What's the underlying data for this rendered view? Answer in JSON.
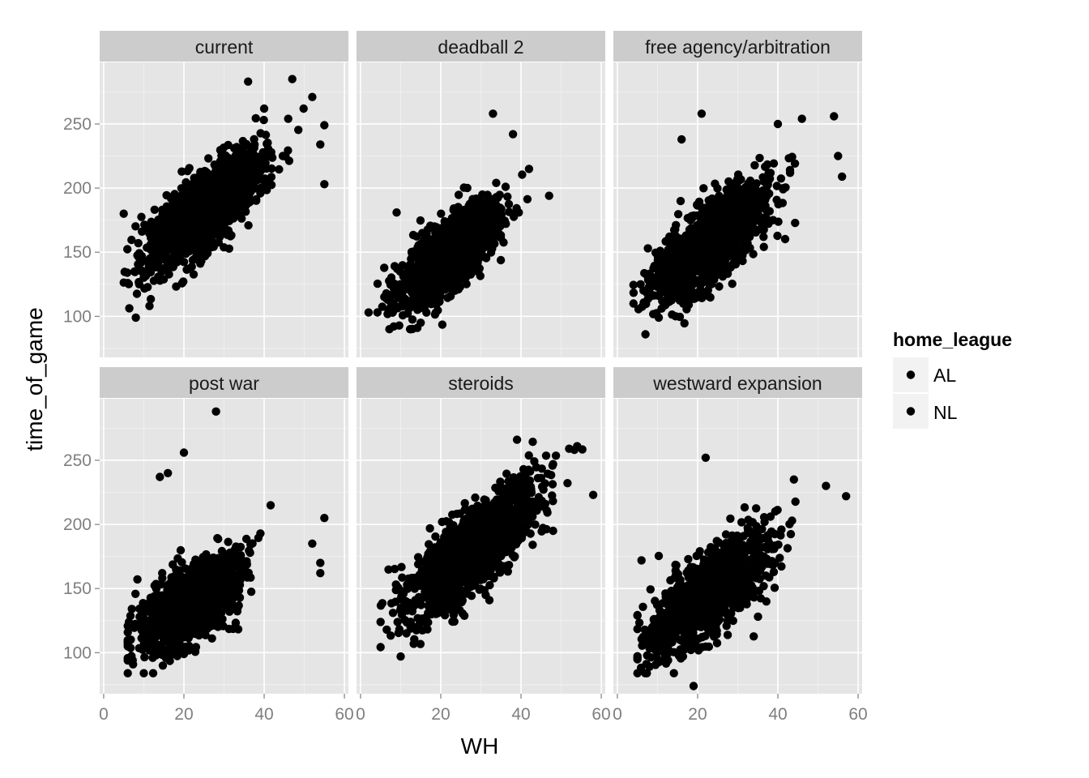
{
  "chart_data": {
    "type": "scatter",
    "xlabel": "WH",
    "ylabel": "time_of_game",
    "xlim": [
      -1,
      61
    ],
    "ylim": [
      68,
      298
    ],
    "x_ticks": [
      0,
      20,
      40,
      60
    ],
    "x_tick_labels": [
      "0",
      "20",
      "40",
      "60"
    ],
    "y_ticks": [
      100,
      150,
      200,
      250
    ],
    "y_tick_labels": [
      "100",
      "150",
      "200",
      "250"
    ],
    "grid": true,
    "point_color": "#000000",
    "legend": {
      "title": "home_league",
      "position": "right",
      "entries": [
        "AL",
        "NL"
      ]
    },
    "facets": [
      {
        "label": "current",
        "cloud": {
          "x_mean": 25,
          "x_sd": 7,
          "x_min": 5,
          "x_max": 55,
          "slope": 2.5,
          "intercept": 120,
          "noise": 15,
          "y_min": 98,
          "y_max": 262
        },
        "outliers": [
          [
            36,
            283
          ],
          [
            47,
            285
          ],
          [
            52,
            271
          ],
          [
            55,
            249
          ],
          [
            55,
            203
          ],
          [
            54,
            234
          ],
          [
            46,
            254
          ],
          [
            40,
            262
          ],
          [
            6,
            126
          ],
          [
            8,
            99
          ]
        ]
      },
      {
        "label": "deadball 2",
        "cloud": {
          "x_mean": 22,
          "x_sd": 6,
          "x_min": 4,
          "x_max": 46,
          "slope": 2.4,
          "intercept": 95,
          "noise": 14,
          "y_min": 90,
          "y_max": 232
        },
        "outliers": [
          [
            33,
            258
          ],
          [
            38,
            242
          ],
          [
            42,
            215
          ],
          [
            47,
            194
          ],
          [
            9,
            181
          ],
          [
            2,
            103
          ],
          [
            15,
            95
          ]
        ]
      },
      {
        "label": "free agency/arbitration",
        "cloud": {
          "x_mean": 23,
          "x_sd": 7,
          "x_min": 4,
          "x_max": 52,
          "slope": 2.4,
          "intercept": 102,
          "noise": 15,
          "y_min": 86,
          "y_max": 225
        },
        "outliers": [
          [
            21,
            258
          ],
          [
            16,
            238
          ],
          [
            54,
            256
          ],
          [
            46,
            254
          ],
          [
            40,
            250
          ],
          [
            55,
            225
          ],
          [
            56,
            209
          ],
          [
            7,
            86
          ],
          [
            4,
            110
          ]
        ]
      },
      {
        "label": "post war",
        "cloud": {
          "x_mean": 22,
          "x_sd": 6,
          "x_min": 6,
          "x_max": 48,
          "slope": 1.8,
          "intercept": 100,
          "noise": 14,
          "y_min": 84,
          "y_max": 215
        },
        "outliers": [
          [
            28,
            288
          ],
          [
            20,
            256
          ],
          [
            16,
            240
          ],
          [
            14,
            237
          ],
          [
            55,
            205
          ],
          [
            54,
            170
          ],
          [
            54,
            162
          ],
          [
            52,
            185
          ],
          [
            6,
            94
          ],
          [
            10,
            84
          ]
        ]
      },
      {
        "label": "steroids",
        "cloud": {
          "x_mean": 28,
          "x_sd": 8,
          "x_min": 5,
          "x_max": 56,
          "slope": 2.5,
          "intercept": 110,
          "noise": 16,
          "y_min": 96,
          "y_max": 266
        },
        "outliers": [
          [
            58,
            223
          ],
          [
            54,
            261
          ],
          [
            52,
            259
          ],
          [
            39,
            266
          ],
          [
            48,
            247
          ],
          [
            10,
            97
          ],
          [
            5,
            124
          ]
        ]
      },
      {
        "label": "westward expansion",
        "cloud": {
          "x_mean": 23,
          "x_sd": 7,
          "x_min": 5,
          "x_max": 50,
          "slope": 2.2,
          "intercept": 95,
          "noise": 15,
          "y_min": 84,
          "y_max": 234
        },
        "outliers": [
          [
            57,
            222
          ],
          [
            52,
            230
          ],
          [
            44,
            235
          ],
          [
            22,
            252
          ],
          [
            6,
            172
          ],
          [
            19,
            74
          ],
          [
            5,
            96
          ],
          [
            8,
            89
          ]
        ]
      }
    ]
  }
}
